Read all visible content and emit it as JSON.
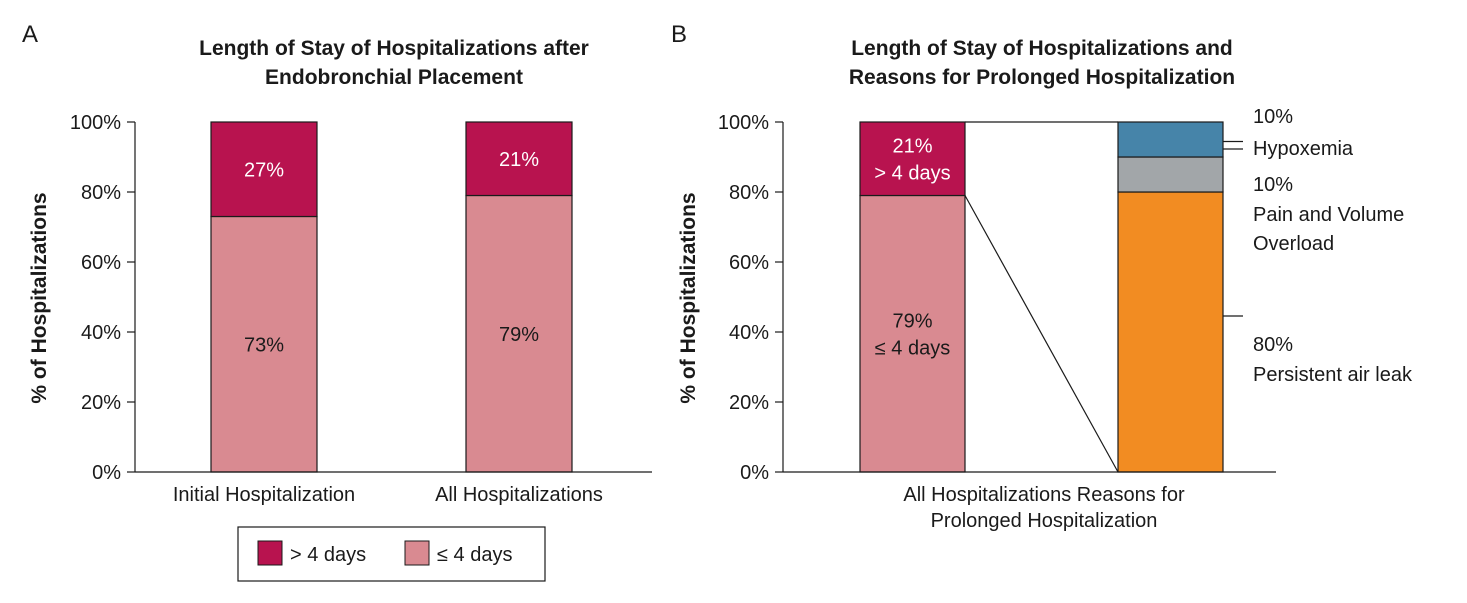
{
  "panel_a": {
    "letter": "A",
    "title_lines": [
      "Length of Stay of Hospitalizations after",
      "Endobronchial Placement"
    ],
    "ylabel": "% of Hospitalizations",
    "legend": {
      "items": [
        {
          "label": "> 4 days",
          "color": "#b8134f"
        },
        {
          "label": "≤ 4 days",
          "color": "#d98a91"
        }
      ]
    }
  },
  "panel_b": {
    "letter": "B",
    "title_lines": [
      "Length of Stay of Hospitalizations and",
      "Reasons for Prolonged Hospitalization"
    ],
    "ylabel": "% of Hospitalizations",
    "xlabel_lines": [
      "All Hospitalizations Reasons for",
      "Prolonged Hospitalization"
    ]
  },
  "chart_data": [
    {
      "type": "bar",
      "stacked": true,
      "categories": [
        "Initial Hospitalization",
        "All Hospitalizations"
      ],
      "series": [
        {
          "name": "≤ 4 days",
          "values": [
            73,
            79
          ],
          "labels": [
            "73%",
            "79%"
          ],
          "color": "#d98a91"
        },
        {
          "name": "> 4 days",
          "values": [
            27,
            21
          ],
          "labels": [
            "27%",
            "21%"
          ],
          "color": "#b8134f"
        }
      ],
      "title": "Length of Stay of Hospitalizations after Endobronchial Placement",
      "ylabel": "% of Hospitalizations",
      "ylim": [
        0,
        100
      ],
      "yticks": [
        "0%",
        "20%",
        "40%",
        "60%",
        "80%",
        "100%"
      ],
      "legend_position": "bottom"
    },
    {
      "type": "bar",
      "stacked": true,
      "title": "Length of Stay of Hospitalizations and Reasons for Prolonged Hospitalization",
      "ylabel": "% of Hospitalizations",
      "ylim": [
        0,
        100
      ],
      "yticks": [
        "0%",
        "20%",
        "40%",
        "60%",
        "80%",
        "100%"
      ],
      "bars": [
        {
          "segments": [
            {
              "value": 79,
              "label_lines": [
                "79%",
                "≤ 4 days"
              ],
              "color": "#d98a91"
            },
            {
              "value": 21,
              "label_lines": [
                "21%",
                "> 4 days"
              ],
              "color": "#b8134f"
            }
          ]
        },
        {
          "segments": [
            {
              "value": 80,
              "pct": "80%",
              "reason_lines": [
                "Persistent air leak"
              ],
              "color": "#f28c22"
            },
            {
              "value": 10,
              "pct": "10%",
              "reason_lines": [
                "Pain and Volume",
                "Overload"
              ],
              "color": "#a2a6a9"
            },
            {
              "value": 10,
              "pct": "10%",
              "reason_lines": [
                "Hypoxemia"
              ],
              "color": "#4684a9"
            }
          ]
        }
      ]
    }
  ]
}
